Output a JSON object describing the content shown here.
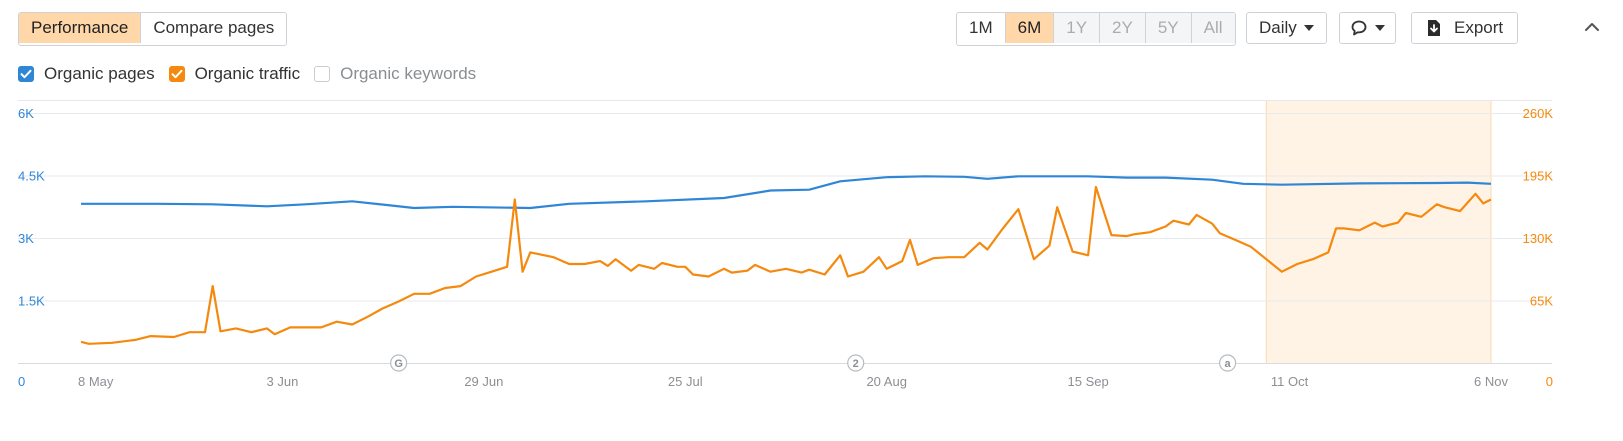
{
  "toolbar": {
    "mode_tabs": [
      {
        "label": "Performance",
        "active": true
      },
      {
        "label": "Compare pages",
        "active": false
      }
    ],
    "range_tabs": [
      {
        "label": "1M",
        "state": "normal"
      },
      {
        "label": "6M",
        "state": "active"
      },
      {
        "label": "1Y",
        "state": "disabled"
      },
      {
        "label": "2Y",
        "state": "disabled"
      },
      {
        "label": "5Y",
        "state": "disabled"
      },
      {
        "label": "All",
        "state": "disabled"
      }
    ],
    "interval": "Daily",
    "export_label": "Export"
  },
  "legend": [
    {
      "label": "Organic pages",
      "checked": true,
      "color": "#2f86d6"
    },
    {
      "label": "Organic traffic",
      "checked": true,
      "color": "#f5890e"
    },
    {
      "label": "Organic keywords",
      "checked": false,
      "color": "#c9ccd0"
    }
  ],
  "icons": {
    "annotation": "speech-bubble-icon",
    "export": "download-icon",
    "collapse": "chevron-up-icon"
  },
  "chart_data": {
    "type": "line",
    "title": "",
    "x_start": "2024-05-08",
    "x_end": "2024-11-06",
    "x_ticks": [
      "8 May",
      "3 Jun",
      "29 Jun",
      "25 Jul",
      "20 Aug",
      "15 Sep",
      "11 Oct",
      "6 Nov"
    ],
    "y_left": {
      "ticks": [
        "0",
        "1.5K",
        "3K",
        "4.5K",
        "6K"
      ],
      "range": [
        0,
        6000
      ],
      "color": "#2f86d6"
    },
    "y_right": {
      "ticks": [
        "0",
        "65K",
        "130K",
        "195K",
        "260K"
      ],
      "range": [
        0,
        260000
      ],
      "color": "#f5890e"
    },
    "grid": true,
    "highlight_range": [
      "2024-10-08",
      "2024-11-06"
    ],
    "annotations": [
      {
        "date": "2024-06-18",
        "label": "G"
      },
      {
        "date": "2024-08-16",
        "label": "2"
      },
      {
        "date": "2024-10-03",
        "label": "a"
      }
    ],
    "series": [
      {
        "name": "Organic pages",
        "axis": "left",
        "color": "#2f86d6",
        "points": [
          [
            "2024-05-08",
            3820
          ],
          [
            "2024-05-18",
            3820
          ],
          [
            "2024-05-25",
            3810
          ],
          [
            "2024-06-01",
            3760
          ],
          [
            "2024-06-06",
            3810
          ],
          [
            "2024-06-12",
            3880
          ],
          [
            "2024-06-20",
            3720
          ],
          [
            "2024-06-25",
            3750
          ],
          [
            "2024-07-05",
            3720
          ],
          [
            "2024-07-10",
            3820
          ],
          [
            "2024-07-20",
            3880
          ],
          [
            "2024-07-30",
            3960
          ],
          [
            "2024-08-05",
            4140
          ],
          [
            "2024-08-10",
            4160
          ],
          [
            "2024-08-14",
            4360
          ],
          [
            "2024-08-20",
            4460
          ],
          [
            "2024-08-25",
            4480
          ],
          [
            "2024-08-30",
            4470
          ],
          [
            "2024-09-02",
            4420
          ],
          [
            "2024-09-06",
            4480
          ],
          [
            "2024-09-15",
            4480
          ],
          [
            "2024-09-20",
            4450
          ],
          [
            "2024-09-25",
            4450
          ],
          [
            "2024-10-01",
            4400
          ],
          [
            "2024-10-05",
            4300
          ],
          [
            "2024-10-10",
            4280
          ],
          [
            "2024-10-20",
            4310
          ],
          [
            "2024-10-30",
            4320
          ],
          [
            "2024-11-03",
            4330
          ],
          [
            "2024-11-06",
            4300
          ]
        ]
      },
      {
        "name": "Organic traffic",
        "axis": "right",
        "color": "#f5890e",
        "points": [
          [
            "2024-05-08",
            22000
          ],
          [
            "2024-05-09",
            20000
          ],
          [
            "2024-05-12",
            21000
          ],
          [
            "2024-05-15",
            24000
          ],
          [
            "2024-05-17",
            28000
          ],
          [
            "2024-05-20",
            27000
          ],
          [
            "2024-05-22",
            32000
          ],
          [
            "2024-05-24",
            32000
          ],
          [
            "2024-05-25",
            80000
          ],
          [
            "2024-05-26",
            33000
          ],
          [
            "2024-05-28",
            36000
          ],
          [
            "2024-05-30",
            32000
          ],
          [
            "2024-06-01",
            36000
          ],
          [
            "2024-06-02",
            30000
          ],
          [
            "2024-06-04",
            37000
          ],
          [
            "2024-06-08",
            37000
          ],
          [
            "2024-06-10",
            43000
          ],
          [
            "2024-06-12",
            40000
          ],
          [
            "2024-06-14",
            48000
          ],
          [
            "2024-06-16",
            57000
          ],
          [
            "2024-06-18",
            64000
          ],
          [
            "2024-06-20",
            72000
          ],
          [
            "2024-06-22",
            72000
          ],
          [
            "2024-06-24",
            78000
          ],
          [
            "2024-06-26",
            80000
          ],
          [
            "2024-06-28",
            90000
          ],
          [
            "2024-06-30",
            95000
          ],
          [
            "2024-07-02",
            100000
          ],
          [
            "2024-07-03",
            170000
          ],
          [
            "2024-07-04",
            95000
          ],
          [
            "2024-07-05",
            115000
          ],
          [
            "2024-07-08",
            110000
          ],
          [
            "2024-07-10",
            103000
          ],
          [
            "2024-07-12",
            103000
          ],
          [
            "2024-07-14",
            106000
          ],
          [
            "2024-07-15",
            101000
          ],
          [
            "2024-07-16",
            108000
          ],
          [
            "2024-07-18",
            96000
          ],
          [
            "2024-07-19",
            102000
          ],
          [
            "2024-07-21",
            98000
          ],
          [
            "2024-07-22",
            104000
          ],
          [
            "2024-07-24",
            100000
          ],
          [
            "2024-07-25",
            100000
          ],
          [
            "2024-07-26",
            92000
          ],
          [
            "2024-07-28",
            90000
          ],
          [
            "2024-07-30",
            98000
          ],
          [
            "2024-07-31",
            94000
          ],
          [
            "2024-08-02",
            96000
          ],
          [
            "2024-08-03",
            102000
          ],
          [
            "2024-08-05",
            95000
          ],
          [
            "2024-08-07",
            98000
          ],
          [
            "2024-08-09",
            94000
          ],
          [
            "2024-08-10",
            97000
          ],
          [
            "2024-08-12",
            92000
          ],
          [
            "2024-08-14",
            112000
          ],
          [
            "2024-08-15",
            90000
          ],
          [
            "2024-08-17",
            95000
          ],
          [
            "2024-08-19",
            110000
          ],
          [
            "2024-08-20",
            98000
          ],
          [
            "2024-08-22",
            106000
          ],
          [
            "2024-08-23",
            128000
          ],
          [
            "2024-08-24",
            102000
          ],
          [
            "2024-08-26",
            109000
          ],
          [
            "2024-08-28",
            110000
          ],
          [
            "2024-08-30",
            110000
          ],
          [
            "2024-09-01",
            125000
          ],
          [
            "2024-09-02",
            118000
          ],
          [
            "2024-09-04",
            140000
          ],
          [
            "2024-09-06",
            160000
          ],
          [
            "2024-09-08",
            108000
          ],
          [
            "2024-09-10",
            122000
          ],
          [
            "2024-09-11",
            162000
          ],
          [
            "2024-09-13",
            116000
          ],
          [
            "2024-09-15",
            112000
          ],
          [
            "2024-09-16",
            183000
          ],
          [
            "2024-09-18",
            133000
          ],
          [
            "2024-09-20",
            132000
          ],
          [
            "2024-09-21",
            134000
          ],
          [
            "2024-09-23",
            136000
          ],
          [
            "2024-09-25",
            142000
          ],
          [
            "2024-09-26",
            148000
          ],
          [
            "2024-09-28",
            144000
          ],
          [
            "2024-09-29",
            154000
          ],
          [
            "2024-10-01",
            145000
          ],
          [
            "2024-10-02",
            135000
          ],
          [
            "2024-10-04",
            128000
          ],
          [
            "2024-10-06",
            121000
          ],
          [
            "2024-10-08",
            108000
          ],
          [
            "2024-10-10",
            95000
          ],
          [
            "2024-10-12",
            103000
          ],
          [
            "2024-10-14",
            108000
          ],
          [
            "2024-10-16",
            115000
          ],
          [
            "2024-10-17",
            140000
          ],
          [
            "2024-10-18",
            140000
          ],
          [
            "2024-10-20",
            138000
          ],
          [
            "2024-10-22",
            146000
          ],
          [
            "2024-10-23",
            142000
          ],
          [
            "2024-10-25",
            146000
          ],
          [
            "2024-10-26",
            156000
          ],
          [
            "2024-10-28",
            152000
          ],
          [
            "2024-10-30",
            165000
          ],
          [
            "2024-10-31",
            162000
          ],
          [
            "2024-11-02",
            158000
          ],
          [
            "2024-11-04",
            176000
          ],
          [
            "2024-11-05",
            166000
          ],
          [
            "2024-11-06",
            170000
          ]
        ]
      }
    ]
  }
}
